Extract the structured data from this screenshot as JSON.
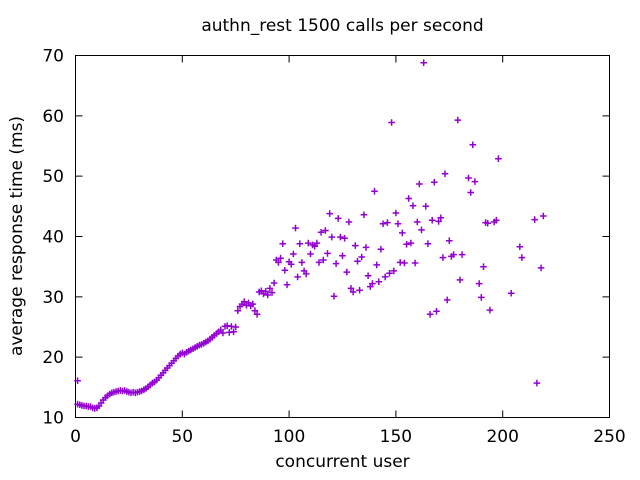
{
  "title": "authn_rest 1500 calls per second",
  "chart_data": {
    "type": "scatter",
    "title": "authn_rest 1500 calls per second",
    "xlabel": "concurrent user",
    "ylabel": "average response time (ms)",
    "xlim": [
      0,
      250
    ],
    "ylim": [
      10,
      70
    ],
    "x_ticks": [
      0,
      50,
      100,
      150,
      200,
      250
    ],
    "y_ticks": [
      10,
      20,
      30,
      40,
      50,
      60,
      70
    ],
    "grid": false,
    "legend": "none",
    "marker": "plus",
    "marker_color": "#9400d3",
    "axis_color": "#000000",
    "series": [
      {
        "name": "authn_rest",
        "points": [
          [
            1,
            16.1
          ],
          [
            1,
            12.2
          ],
          [
            2,
            12.1
          ],
          [
            3,
            12.0
          ],
          [
            4,
            11.9
          ],
          [
            5,
            11.9
          ],
          [
            6,
            11.8
          ],
          [
            7,
            11.8
          ],
          [
            8,
            11.6
          ],
          [
            9,
            11.5
          ],
          [
            10,
            11.6
          ],
          [
            11,
            11.9
          ],
          [
            12,
            12.4
          ],
          [
            13,
            12.9
          ],
          [
            14,
            13.3
          ],
          [
            15,
            13.6
          ],
          [
            16,
            13.9
          ],
          [
            17,
            14.1
          ],
          [
            18,
            14.2
          ],
          [
            19,
            14.3
          ],
          [
            20,
            14.4
          ],
          [
            21,
            14.5
          ],
          [
            22,
            14.4
          ],
          [
            23,
            14.5
          ],
          [
            24,
            14.3
          ],
          [
            25,
            14.2
          ],
          [
            26,
            14.1
          ],
          [
            27,
            14.2
          ],
          [
            28,
            14.1
          ],
          [
            29,
            14.2
          ],
          [
            30,
            14.3
          ],
          [
            31,
            14.4
          ],
          [
            32,
            14.6
          ],
          [
            33,
            14.8
          ],
          [
            34,
            15.1
          ],
          [
            35,
            15.4
          ],
          [
            36,
            15.7
          ],
          [
            37,
            15.9
          ],
          [
            38,
            16.2
          ],
          [
            39,
            16.6
          ],
          [
            40,
            17.0
          ],
          [
            41,
            17.4
          ],
          [
            42,
            17.8
          ],
          [
            43,
            18.2
          ],
          [
            44,
            18.6
          ],
          [
            45,
            19.0
          ],
          [
            46,
            19.4
          ],
          [
            47,
            19.8
          ],
          [
            48,
            20.2
          ],
          [
            49,
            20.5
          ],
          [
            50,
            20.7
          ],
          [
            51,
            20.5
          ],
          [
            52,
            20.8
          ],
          [
            53,
            21.0
          ],
          [
            54,
            21.2
          ],
          [
            55,
            21.4
          ],
          [
            56,
            21.6
          ],
          [
            57,
            21.8
          ],
          [
            58,
            22.0
          ],
          [
            59,
            22.1
          ],
          [
            60,
            22.3
          ],
          [
            61,
            22.5
          ],
          [
            62,
            22.7
          ],
          [
            63,
            23.0
          ],
          [
            64,
            23.3
          ],
          [
            65,
            23.6
          ],
          [
            66,
            23.9
          ],
          [
            67,
            24.2
          ],
          [
            68,
            24.5
          ],
          [
            69,
            24.0
          ],
          [
            70,
            25.1
          ],
          [
            71,
            25.2
          ],
          [
            72,
            24.1
          ],
          [
            73,
            25.1
          ],
          [
            74,
            24.2
          ],
          [
            75,
            25.0
          ],
          [
            76,
            27.7
          ],
          [
            77,
            28.4
          ],
          [
            78,
            28.8
          ],
          [
            79,
            29.2
          ],
          [
            80,
            28.6
          ],
          [
            81,
            29.0
          ],
          [
            82,
            28.5
          ],
          [
            83,
            28.8
          ],
          [
            84,
            27.7
          ],
          [
            85,
            27.1
          ],
          [
            86,
            30.8
          ],
          [
            87,
            31.0
          ],
          [
            88,
            30.5
          ],
          [
            89,
            30.9
          ],
          [
            90,
            30.3
          ],
          [
            91,
            31.4
          ],
          [
            92,
            30.7
          ],
          [
            93,
            32.3
          ],
          [
            94,
            36.1
          ],
          [
            95,
            35.7
          ],
          [
            96,
            36.4
          ],
          [
            97,
            38.8
          ],
          [
            98,
            34.4
          ],
          [
            99,
            32.0
          ],
          [
            100,
            35.8
          ],
          [
            101,
            35.4
          ],
          [
            102,
            37.1
          ],
          [
            103,
            41.4
          ],
          [
            104,
            33.3
          ],
          [
            105,
            38.8
          ],
          [
            106,
            35.7
          ],
          [
            107,
            34.3
          ],
          [
            108,
            33.8
          ],
          [
            109,
            38.9
          ],
          [
            110,
            37.1
          ],
          [
            111,
            38.6
          ],
          [
            112,
            38.4
          ],
          [
            113,
            38.9
          ],
          [
            114,
            35.7
          ],
          [
            115,
            40.7
          ],
          [
            116,
            36.1
          ],
          [
            117,
            41.0
          ],
          [
            118,
            37.2
          ],
          [
            119,
            43.8
          ],
          [
            120,
            39.9
          ],
          [
            121,
            30.1
          ],
          [
            122,
            35.5
          ],
          [
            123,
            43.0
          ],
          [
            124,
            39.9
          ],
          [
            125,
            36.8
          ],
          [
            126,
            39.7
          ],
          [
            127,
            34.1
          ],
          [
            128,
            42.4
          ],
          [
            129,
            31.4
          ],
          [
            130,
            30.8
          ],
          [
            131,
            38.5
          ],
          [
            132,
            35.9
          ],
          [
            133,
            31.1
          ],
          [
            134,
            36.6
          ],
          [
            135,
            43.6
          ],
          [
            136,
            38.2
          ],
          [
            137,
            33.5
          ],
          [
            138,
            31.7
          ],
          [
            139,
            32.2
          ],
          [
            140,
            47.5
          ],
          [
            141,
            35.3
          ],
          [
            142,
            32.5
          ],
          [
            143,
            37.9
          ],
          [
            144,
            42.1
          ],
          [
            145,
            33.3
          ],
          [
            146,
            42.3
          ],
          [
            147,
            33.9
          ],
          [
            148,
            58.9
          ],
          [
            149,
            34.3
          ],
          [
            150,
            43.9
          ],
          [
            151,
            42.1
          ],
          [
            152,
            35.7
          ],
          [
            153,
            40.6
          ],
          [
            154,
            35.6
          ],
          [
            155,
            38.7
          ],
          [
            156,
            46.3
          ],
          [
            157,
            38.9
          ],
          [
            158,
            45.1
          ],
          [
            159,
            35.6
          ],
          [
            160,
            42.4
          ],
          [
            161,
            48.7
          ],
          [
            162,
            41.1
          ],
          [
            163,
            68.8
          ],
          [
            164,
            45.0
          ],
          [
            165,
            38.8
          ],
          [
            166,
            27.1
          ],
          [
            167,
            42.7
          ],
          [
            168,
            49.0
          ],
          [
            169,
            27.6
          ],
          [
            170,
            42.5
          ],
          [
            171,
            43.1
          ],
          [
            172,
            36.5
          ],
          [
            173,
            50.4
          ],
          [
            174,
            29.5
          ],
          [
            175,
            39.3
          ],
          [
            176,
            36.7
          ],
          [
            177,
            37.0
          ],
          [
            179,
            59.3
          ],
          [
            180,
            32.8
          ],
          [
            181,
            37.0
          ],
          [
            184,
            49.7
          ],
          [
            185,
            47.3
          ],
          [
            186,
            55.2
          ],
          [
            187,
            49.1
          ],
          [
            189,
            32.2
          ],
          [
            190,
            29.9
          ],
          [
            191,
            35.0
          ],
          [
            192,
            42.3
          ],
          [
            193,
            42.2
          ],
          [
            194,
            27.8
          ],
          [
            196,
            42.4
          ],
          [
            197,
            42.7
          ],
          [
            198,
            52.9
          ],
          [
            204,
            30.6
          ],
          [
            208,
            38.3
          ],
          [
            209,
            36.5
          ],
          [
            215,
            42.8
          ],
          [
            216,
            15.7
          ],
          [
            218,
            34.8
          ],
          [
            219,
            43.4
          ]
        ]
      }
    ]
  }
}
